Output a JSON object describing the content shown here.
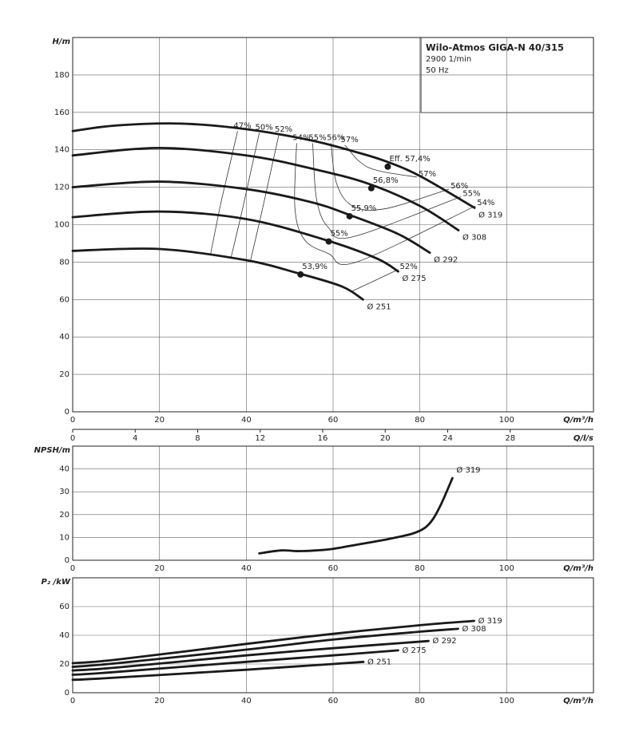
{
  "info": {
    "title": "Wilo-Atmos GIGA-N 40/315",
    "speed": "2900 1/min",
    "frequency": "50 Hz"
  },
  "chart_data": [
    {
      "type": "line",
      "y_label": "H/m",
      "x_label": "Q/m³/h",
      "xlim": [
        0,
        120
      ],
      "ylim": [
        0,
        200
      ],
      "xticks": [
        0,
        20,
        40,
        60,
        80,
        100
      ],
      "yticks": [
        0,
        20,
        40,
        60,
        80,
        100,
        120,
        140,
        160,
        180
      ],
      "grid": true,
      "color": "#1a1a1a",
      "x2lim": [
        0,
        33.33
      ],
      "x2ticks": [
        0,
        4,
        8,
        12,
        16,
        20,
        24,
        28
      ],
      "x2_label": "Q/l/s",
      "series": [
        {
          "name": "Ø 319",
          "x": [
            0,
            10,
            25,
            40,
            55,
            65,
            72,
            80,
            92.6
          ],
          "values": [
            150,
            153,
            154,
            151,
            145,
            139,
            134,
            126,
            109
          ]
        },
        {
          "name": "Ø 308",
          "x": [
            0,
            20,
            40,
            55,
            68,
            80,
            88.9
          ],
          "values": [
            137,
            141,
            137,
            130,
            122,
            110,
            97
          ]
        },
        {
          "name": "Ø 292",
          "x": [
            0,
            20,
            40,
            55,
            64,
            75,
            82.3
          ],
          "values": [
            120,
            123,
            119,
            112,
            105,
            95,
            85
          ]
        },
        {
          "name": "Ø 275",
          "x": [
            0,
            20,
            40,
            58,
            70,
            75
          ],
          "values": [
            104,
            107,
            103,
            92,
            82,
            75
          ]
        },
        {
          "name": "Ø 251",
          "x": [
            0,
            20,
            40,
            52,
            62,
            66.9
          ],
          "values": [
            86,
            87,
            81,
            74,
            67,
            60
          ]
        }
      ],
      "points": [
        {
          "label": "Eff. 57,4%",
          "x": 72.6,
          "value": 131
        },
        {
          "label": "56,8%",
          "x": 68.8,
          "value": 119.5
        },
        {
          "label": "55,9%",
          "x": 63.8,
          "value": 104.5
        },
        {
          "label": "55%",
          "x": 59,
          "value": 91
        },
        {
          "label": "53,9%",
          "x": 52.5,
          "value": 73.4
        }
      ],
      "efficiency": [
        {
          "start_label": "47%",
          "x": [
            38,
            36,
            34,
            31.8
          ],
          "values": [
            150,
            130,
            110,
            84.5
          ]
        },
        {
          "start_label": "50%",
          "x": [
            43,
            41,
            39,
            36.5
          ],
          "values": [
            149,
            128,
            107,
            82.5
          ]
        },
        {
          "start_label": "52%",
          "x": [
            47.5,
            45.5,
            43.5,
            41
          ],
          "values": [
            148,
            127,
            106,
            81
          ]
        },
        {
          "start_label": "54%",
          "end_label": "54%",
          "x": [
            51.6,
            51.2,
            53.4,
            59,
            65.4,
            92.8
          ],
          "values": [
            143.5,
            109,
            92,
            84.5,
            80,
            110
          ]
        },
        {
          "start_label": "55%",
          "end_label": "55%",
          "x": [
            55.3,
            56.2,
            58.9,
            64.5,
            89.5
          ],
          "values": [
            143.5,
            113.5,
            98.5,
            93.5,
            115
          ]
        },
        {
          "start_label": "56%",
          "end_label": "56%",
          "x": [
            59.5,
            60.8,
            64.5,
            72,
            86.7
          ],
          "values": [
            143.5,
            122,
            110,
            108.5,
            119
          ]
        },
        {
          "start_label": "57%",
          "end_label": "57%",
          "x": [
            62.7,
            68.2,
            79.3
          ],
          "values": [
            142.5,
            130.5,
            125.4
          ]
        },
        {
          "end_label": "52%",
          "x": [
            64,
            75
          ],
          "values": [
            64,
            76
          ]
        }
      ]
    },
    {
      "type": "line",
      "y_label": "NPSH/m",
      "x_label": "Q/m³/h",
      "xlim": [
        0,
        120
      ],
      "ylim": [
        0,
        50
      ],
      "xticks": [
        0,
        20,
        40,
        60,
        80,
        100
      ],
      "yticks": [
        0,
        10,
        20,
        30,
        40
      ],
      "grid": true,
      "color": "#1a1a1a",
      "series": [
        {
          "name": "Ø 319",
          "x": [
            43,
            48,
            52,
            56,
            60,
            66,
            72,
            78,
            81,
            83,
            85,
            87.5
          ],
          "values": [
            3,
            4.3,
            4,
            4.3,
            5,
            7,
            9,
            11.5,
            14,
            18,
            25,
            36
          ]
        }
      ]
    },
    {
      "type": "line",
      "y_label": "P₂ /kW",
      "x_label": "Q/m³/h",
      "xlim": [
        0,
        120
      ],
      "ylim": [
        0,
        80
      ],
      "xticks": [
        0,
        20,
        40,
        60,
        80,
        100
      ],
      "yticks": [
        0,
        20,
        40,
        60
      ],
      "grid": true,
      "color": "#1a1a1a",
      "series": [
        {
          "name": "Ø 319",
          "x": [
            0,
            10,
            40,
            60,
            80,
            92.5
          ],
          "values": [
            20.6,
            23,
            34,
            41,
            47,
            50
          ]
        },
        {
          "name": "Ø 308",
          "x": [
            0,
            10,
            40,
            60,
            80,
            88.8
          ],
          "values": [
            18,
            20.5,
            30,
            37,
            42.5,
            44.5
          ]
        },
        {
          "name": "Ø 292",
          "x": [
            0,
            10,
            40,
            60,
            82
          ],
          "values": [
            15.5,
            17.5,
            26,
            31,
            36
          ]
        },
        {
          "name": "Ø 275",
          "x": [
            0,
            8,
            40,
            60,
            75
          ],
          "values": [
            12.5,
            14,
            21.5,
            26,
            29.5
          ]
        },
        {
          "name": "Ø 251",
          "x": [
            0,
            7,
            40,
            60,
            67
          ],
          "values": [
            9,
            10,
            16,
            20,
            21.5
          ]
        }
      ]
    }
  ]
}
